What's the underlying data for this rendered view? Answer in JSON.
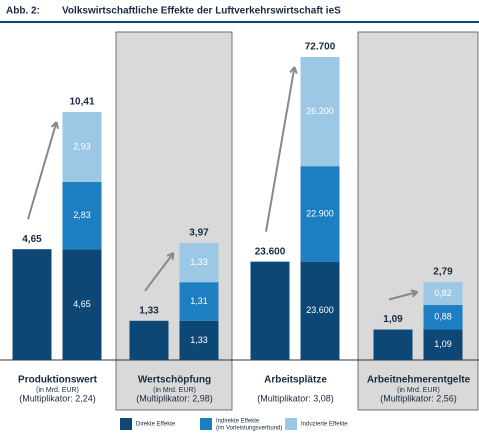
{
  "title_prefix": "Abb. 2:",
  "chart_data": {
    "type": "bar",
    "title": "Volkswirtschaftliche Effekte der Luftverkehrswirtschaft ieS",
    "categories": [
      "Produktionswert",
      "Wertschöpfung",
      "Arbeitsplätze",
      "Arbeitnehmerentgelte"
    ],
    "units": [
      "(in Mrd. EUR)",
      "(in Mrd. EUR)",
      null,
      "(in Mrd. EUR)"
    ],
    "multipliers": [
      "(Multiplikator: 2,24)",
      "(Multiplikator: 2,98)",
      "(Multiplikator: 3,08)",
      "(Multiplikator: 2,56)"
    ],
    "series": [
      {
        "name": "Direkte Effekte",
        "color": "#0d4775",
        "values": [
          4.65,
          1.33,
          23600,
          1.09
        ],
        "value_labels": [
          "4,65",
          "1,33",
          "23.600",
          "1,09"
        ]
      },
      {
        "name": "Indirekte Effekte",
        "subname": "(im Vorleistungsverbund)",
        "color": "#1d7ec2",
        "values": [
          2.83,
          1.31,
          22900,
          0.88
        ],
        "value_labels": [
          "2,83",
          "1,31",
          "22.900",
          "0,88"
        ]
      },
      {
        "name": "Induzierte Effekte",
        "color": "#9cc8e6",
        "values": [
          2.93,
          1.33,
          26200,
          0.82
        ],
        "value_labels": [
          "2,93",
          "1,33",
          "26.200",
          "0,82"
        ]
      }
    ],
    "totals": [
      10.41,
      3.97,
      72700,
      2.79
    ],
    "total_labels": [
      "10,41",
      "3,97",
      "72.700",
      "2,79"
    ]
  }
}
